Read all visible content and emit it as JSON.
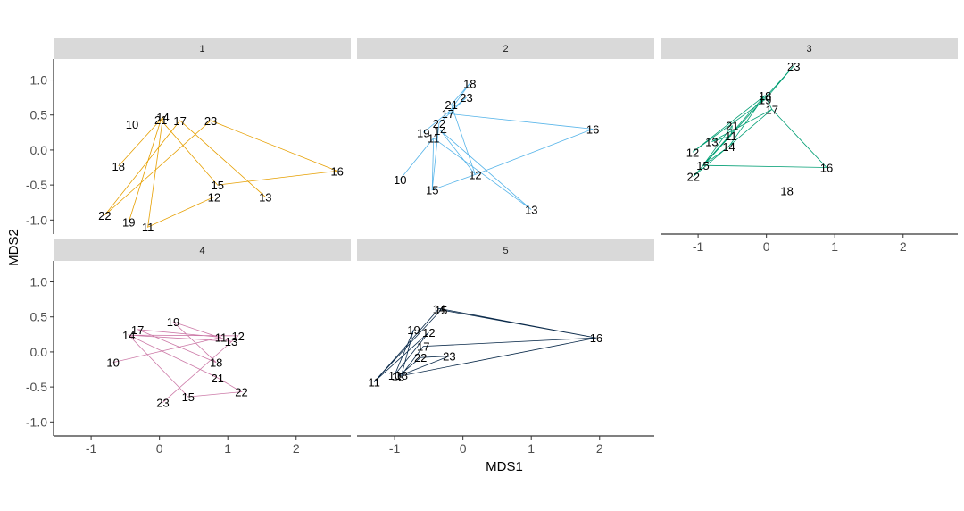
{
  "chart_data": {
    "type": "scatter",
    "subtype": "faceted MDS ordination with connecting paths",
    "xlabel": "MDS1",
    "ylabel": "MDS2",
    "x_ticks": [
      "-1",
      "0",
      "1",
      "2"
    ],
    "y_ticks": [
      "-1.0",
      "-0.5",
      "0.0",
      "0.5",
      "1.0"
    ],
    "xlim": [
      -1.55,
      2.8
    ],
    "ylim": [
      -1.2,
      1.3
    ],
    "grid": false,
    "legend": "none",
    "facets": [
      {
        "strip": "1",
        "color": "#E69F00",
        "points": [
          {
            "label": "10",
            "x": -0.4,
            "y": 0.37
          },
          {
            "label": "14",
            "x": 0.05,
            "y": 0.47
          },
          {
            "label": "21",
            "x": 0.02,
            "y": 0.43
          },
          {
            "label": "17",
            "x": 0.3,
            "y": 0.42
          },
          {
            "label": "23",
            "x": 0.75,
            "y": 0.42
          },
          {
            "label": "18",
            "x": -0.6,
            "y": -0.23
          },
          {
            "label": "22",
            "x": -0.8,
            "y": -0.93
          },
          {
            "label": "19",
            "x": -0.45,
            "y": -1.03
          },
          {
            "label": "11",
            "x": -0.17,
            "y": -1.1
          },
          {
            "label": "15",
            "x": 0.85,
            "y": -0.5
          },
          {
            "label": "12",
            "x": 0.8,
            "y": -0.67
          },
          {
            "label": "13",
            "x": 1.55,
            "y": -0.67
          },
          {
            "label": "16",
            "x": 2.6,
            "y": -0.3
          }
        ],
        "path": [
          "18",
          "14",
          "11",
          "12",
          "13",
          "17",
          "22",
          "23",
          "16",
          "15",
          "21",
          "19"
        ]
      },
      {
        "strip": "2",
        "color": "#56B4E9",
        "points": [
          {
            "label": "18",
            "x": 0.1,
            "y": 0.95
          },
          {
            "label": "23",
            "x": 0.05,
            "y": 0.75
          },
          {
            "label": "21",
            "x": -0.17,
            "y": 0.65
          },
          {
            "label": "17",
            "x": -0.22,
            "y": 0.52
          },
          {
            "label": "22",
            "x": -0.35,
            "y": 0.38
          },
          {
            "label": "14",
            "x": -0.33,
            "y": 0.28
          },
          {
            "label": "19",
            "x": -0.58,
            "y": 0.25
          },
          {
            "label": "11",
            "x": -0.43,
            "y": 0.17
          },
          {
            "label": "16",
            "x": 1.9,
            "y": 0.3
          },
          {
            "label": "12",
            "x": 0.18,
            "y": -0.35
          },
          {
            "label": "10",
            "x": -0.92,
            "y": -0.42
          },
          {
            "label": "15",
            "x": -0.45,
            "y": -0.57
          },
          {
            "label": "13",
            "x": 1.0,
            "y": -0.85
          }
        ],
        "path": [
          "10",
          "11",
          "15",
          "11",
          "13",
          "14",
          "12",
          "21",
          "18",
          "17",
          "16",
          "12",
          "15",
          "22",
          "23",
          "19"
        ]
      },
      {
        "strip": "3",
        "color": "#009E73",
        "points": [
          {
            "label": "23",
            "x": 0.4,
            "y": 1.2
          },
          {
            "label": "18",
            "x": -0.02,
            "y": 0.78
          },
          {
            "label": "19",
            "x": -0.02,
            "y": 0.72
          },
          {
            "label": "17",
            "x": 0.08,
            "y": 0.58
          },
          {
            "label": "21",
            "x": -0.5,
            "y": 0.35
          },
          {
            "label": "11",
            "x": -0.52,
            "y": 0.2
          },
          {
            "label": "13",
            "x": -0.8,
            "y": 0.12
          },
          {
            "label": "14",
            "x": -0.55,
            "y": 0.05
          },
          {
            "label": "12",
            "x": -1.08,
            "y": -0.03
          },
          {
            "label": "15",
            "x": -0.93,
            "y": -0.22
          },
          {
            "label": "22",
            "x": -1.07,
            "y": -0.38
          },
          {
            "label": "16",
            "x": 0.88,
            "y": -0.25
          },
          {
            "label": "18",
            "x": 0.3,
            "y": -0.58
          }
        ],
        "path": [
          "12",
          "19",
          "23",
          "22",
          "17",
          "16",
          "15",
          "21",
          "11",
          "13",
          "17",
          "18",
          "14",
          "15",
          "18",
          "12"
        ]
      },
      {
        "strip": "4",
        "color": "#CC79A7",
        "points": [
          {
            "label": "19",
            "x": 0.2,
            "y": 0.43
          },
          {
            "label": "17",
            "x": -0.32,
            "y": 0.32
          },
          {
            "label": "14",
            "x": -0.45,
            "y": 0.24
          },
          {
            "label": "11",
            "x": 0.9,
            "y": 0.21
          },
          {
            "label": "12",
            "x": 1.15,
            "y": 0.23
          },
          {
            "label": "13",
            "x": 1.05,
            "y": 0.15
          },
          {
            "label": "10",
            "x": -0.68,
            "y": -0.15
          },
          {
            "label": "18",
            "x": 0.83,
            "y": -0.15
          },
          {
            "label": "21",
            "x": 0.85,
            "y": -0.37
          },
          {
            "label": "22",
            "x": 1.2,
            "y": -0.57
          },
          {
            "label": "15",
            "x": 0.42,
            "y": -0.64
          },
          {
            "label": "23",
            "x": 0.05,
            "y": -0.72
          }
        ],
        "path": [
          "10",
          "11",
          "17",
          "18",
          "19",
          "13",
          "14",
          "15",
          "22",
          "21",
          "14",
          "12",
          "23"
        ]
      },
      {
        "strip": "5",
        "color": "#0A2A4A",
        "points": [
          {
            "label": "14",
            "x": -0.35,
            "y": 0.62
          },
          {
            "label": "15",
            "x": -0.32,
            "y": 0.6
          },
          {
            "label": "16",
            "x": 1.95,
            "y": 0.2
          },
          {
            "label": "19",
            "x": -0.72,
            "y": 0.32
          },
          {
            "label": "12",
            "x": -0.5,
            "y": 0.28
          },
          {
            "label": "17",
            "x": -0.58,
            "y": 0.08
          },
          {
            "label": "22",
            "x": -0.62,
            "y": -0.08
          },
          {
            "label": "23",
            "x": -0.2,
            "y": -0.06
          },
          {
            "label": "10",
            "x": -1.0,
            "y": -0.33
          },
          {
            "label": "13",
            "x": -0.95,
            "y": -0.35
          },
          {
            "label": "18",
            "x": -0.9,
            "y": -0.33
          },
          {
            "label": "11",
            "x": -1.3,
            "y": -0.43
          }
        ],
        "path": [
          "11",
          "14",
          "16",
          "17",
          "18",
          "19",
          "10",
          "12",
          "11",
          "15",
          "16",
          "13",
          "22",
          "23",
          "18"
        ]
      }
    ]
  }
}
